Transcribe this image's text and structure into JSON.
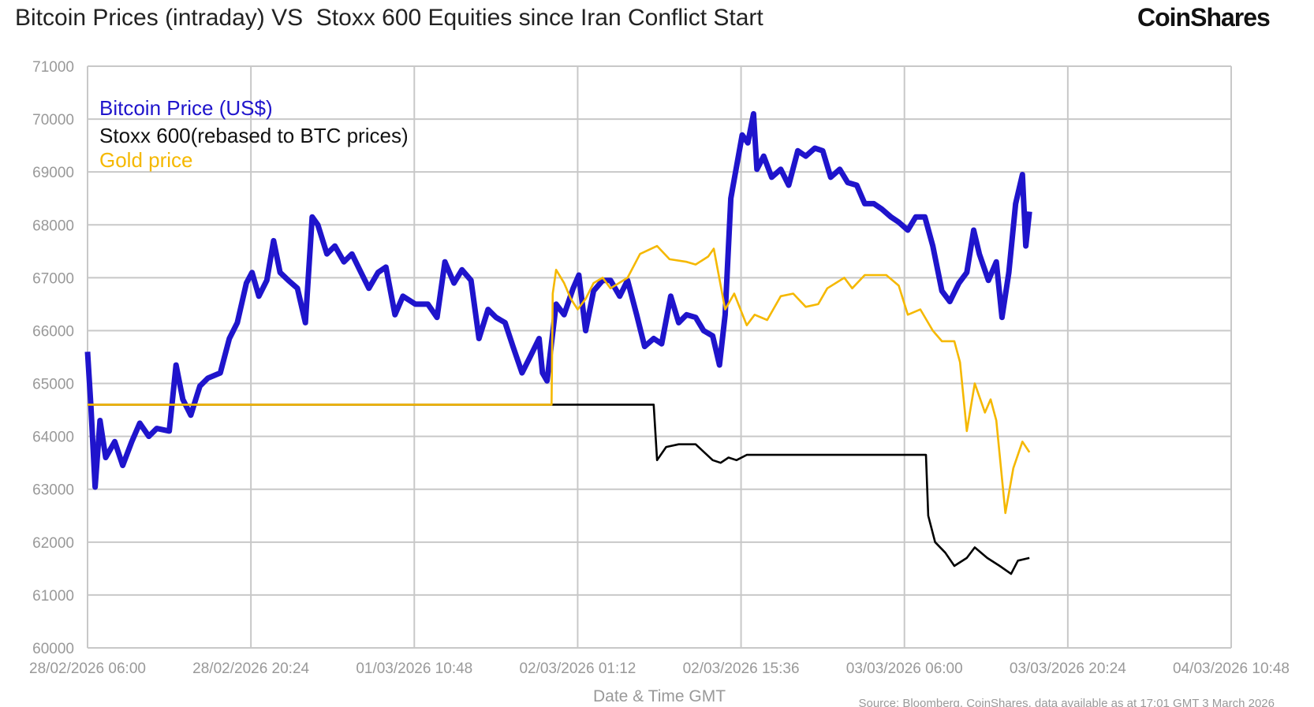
{
  "header": {
    "title": "Bitcoin Prices (intraday) VS  Stoxx 600 Equities since Iran Conflict Start",
    "logo": "CoinShares"
  },
  "chart_data": {
    "type": "line",
    "title": "Bitcoin Prices (intraday) VS  Stoxx 600 Equities since Iran Conflict Start",
    "xlabel": "Date & Time GMT",
    "ylabel": "",
    "ylim": [
      60000,
      71000
    ],
    "yticks": [
      "71000",
      "70000",
      "69000",
      "68000",
      "67000",
      "66000",
      "65000",
      "64000",
      "63000",
      "62000",
      "61000",
      "60000"
    ],
    "xlim": [
      "28/02/2026 06:00",
      "04/03/2026 10:48"
    ],
    "xticks": [
      "28/02/2026 06:00",
      "28/02/2026 20:24",
      "01/03/2026 10:48",
      "02/03/2026 01:12",
      "02/03/2026 15:36",
      "03/03/2026 06:00",
      "03/03/2026 20:24",
      "04/03/2026 10:48"
    ],
    "grid": true,
    "legend_position": "top-left",
    "source": "Source: Bloomberg, CoinShares, data available as at 17:01 GMT 3 March 2026",
    "series": [
      {
        "name": "Bitcoin Price (US$)",
        "color": "#1f14cc",
        "points": [
          [
            "28/02/2026 06:00",
            65600
          ],
          [
            "28/02/2026 06:18",
            64560
          ],
          [
            "28/02/2026 06:40",
            63040
          ],
          [
            "28/02/2026 07:06",
            64300
          ],
          [
            "28/02/2026 07:36",
            63600
          ],
          [
            "28/02/2026 08:24",
            63900
          ],
          [
            "28/02/2026 09:06",
            63450
          ],
          [
            "28/02/2026 09:54",
            63900
          ],
          [
            "28/02/2026 10:36",
            64250
          ],
          [
            "28/02/2026 11:24",
            64000
          ],
          [
            "28/02/2026 12:06",
            64150
          ],
          [
            "28/02/2026 13:12",
            64100
          ],
          [
            "28/02/2026 13:48",
            65350
          ],
          [
            "28/02/2026 14:24",
            64700
          ],
          [
            "28/02/2026 15:06",
            64400
          ],
          [
            "28/02/2026 15:54",
            64950
          ],
          [
            "28/02/2026 16:36",
            65100
          ],
          [
            "28/02/2026 17:42",
            65200
          ],
          [
            "28/02/2026 18:30",
            65850
          ],
          [
            "28/02/2026 19:12",
            66150
          ],
          [
            "28/02/2026 20:00",
            66900
          ],
          [
            "28/02/2026 20:30",
            67100
          ],
          [
            "28/02/2026 21:06",
            66650
          ],
          [
            "28/02/2026 21:48",
            66950
          ],
          [
            "28/02/2026 22:24",
            67700
          ],
          [
            "28/02/2026 22:58",
            67100
          ],
          [
            "28/02/2026 23:42",
            66950
          ],
          [
            "01/03/2026 00:30",
            66800
          ],
          [
            "01/03/2026 01:12",
            66150
          ],
          [
            "01/03/2026 01:48",
            68150
          ],
          [
            "01/03/2026 02:18",
            68000
          ],
          [
            "01/03/2026 03:06",
            67450
          ],
          [
            "01/03/2026 03:48",
            67600
          ],
          [
            "01/03/2026 04:36",
            67300
          ],
          [
            "01/03/2026 05:18",
            67450
          ],
          [
            "01/03/2026 06:06",
            67100
          ],
          [
            "01/03/2026 06:48",
            66800
          ],
          [
            "01/03/2026 07:36",
            67100
          ],
          [
            "01/03/2026 08:18",
            67200
          ],
          [
            "01/03/2026 09:06",
            66300
          ],
          [
            "01/03/2026 09:48",
            66650
          ],
          [
            "01/03/2026 10:54",
            66500
          ],
          [
            "01/03/2026 12:00",
            66500
          ],
          [
            "01/03/2026 12:48",
            66250
          ],
          [
            "01/03/2026 13:30",
            67300
          ],
          [
            "01/03/2026 14:18",
            66900
          ],
          [
            "01/03/2026 15:00",
            67150
          ],
          [
            "01/03/2026 15:48",
            66950
          ],
          [
            "01/03/2026 16:30",
            65850
          ],
          [
            "01/03/2026 17:18",
            66400
          ],
          [
            "01/03/2026 18:00",
            66250
          ],
          [
            "01/03/2026 18:48",
            66150
          ],
          [
            "01/03/2026 19:30",
            65700
          ],
          [
            "01/03/2026 20:18",
            65200
          ],
          [
            "01/03/2026 21:00",
            65500
          ],
          [
            "01/03/2026 21:48",
            65850
          ],
          [
            "01/03/2026 22:06",
            65200
          ],
          [
            "01/03/2026 22:30",
            65050
          ],
          [
            "01/03/2026 23:18",
            66500
          ],
          [
            "02/03/2026 00:00",
            66300
          ],
          [
            "02/03/2026 00:48",
            66800
          ],
          [
            "02/03/2026 01:18",
            67050
          ],
          [
            "02/03/2026 01:54",
            66000
          ],
          [
            "02/03/2026 02:36",
            66750
          ],
          [
            "02/03/2026 03:24",
            66950
          ],
          [
            "02/03/2026 04:06",
            66950
          ],
          [
            "02/03/2026 04:54",
            66650
          ],
          [
            "02/03/2026 05:36",
            66950
          ],
          [
            "02/03/2026 06:24",
            66300
          ],
          [
            "02/03/2026 07:06",
            65700
          ],
          [
            "02/03/2026 07:54",
            65850
          ],
          [
            "02/03/2026 08:36",
            65750
          ],
          [
            "02/03/2026 09:24",
            66650
          ],
          [
            "02/03/2026 10:06",
            66150
          ],
          [
            "02/03/2026 10:48",
            66300
          ],
          [
            "02/03/2026 11:36",
            66250
          ],
          [
            "02/03/2026 12:18",
            66000
          ],
          [
            "02/03/2026 13:06",
            65900
          ],
          [
            "02/03/2026 13:42",
            65350
          ],
          [
            "02/03/2026 14:12",
            66300
          ],
          [
            "02/03/2026 14:42",
            68500
          ],
          [
            "02/03/2026 15:12",
            69100
          ],
          [
            "02/03/2026 15:42",
            69700
          ],
          [
            "02/03/2026 16:12",
            69550
          ],
          [
            "02/03/2026 16:42",
            70100
          ],
          [
            "02/03/2026 17:00",
            69050
          ],
          [
            "02/03/2026 17:36",
            69300
          ],
          [
            "02/03/2026 18:18",
            68900
          ],
          [
            "02/03/2026 19:06",
            69050
          ],
          [
            "02/03/2026 19:48",
            68750
          ],
          [
            "02/03/2026 20:36",
            69400
          ],
          [
            "02/03/2026 21:18",
            69300
          ],
          [
            "02/03/2026 22:06",
            69450
          ],
          [
            "02/03/2026 22:48",
            69400
          ],
          [
            "02/03/2026 23:30",
            68900
          ],
          [
            "03/03/2026 00:18",
            69050
          ],
          [
            "03/03/2026 01:00",
            68800
          ],
          [
            "03/03/2026 01:48",
            68750
          ],
          [
            "03/03/2026 02:30",
            68400
          ],
          [
            "03/03/2026 03:18",
            68400
          ],
          [
            "03/03/2026 04:00",
            68300
          ],
          [
            "03/03/2026 04:48",
            68150
          ],
          [
            "03/03/2026 05:30",
            68050
          ],
          [
            "03/03/2026 06:18",
            67900
          ],
          [
            "03/03/2026 07:00",
            68150
          ],
          [
            "03/03/2026 07:48",
            68150
          ],
          [
            "03/03/2026 08:30",
            67600
          ],
          [
            "03/03/2026 09:18",
            66750
          ],
          [
            "03/03/2026 10:00",
            66550
          ],
          [
            "03/03/2026 10:48",
            66900
          ],
          [
            "03/03/2026 11:30",
            67100
          ],
          [
            "03/03/2026 12:06",
            67900
          ],
          [
            "03/03/2026 12:36",
            67450
          ],
          [
            "03/03/2026 13:24",
            66950
          ],
          [
            "03/03/2026 14:06",
            67300
          ],
          [
            "03/03/2026 14:36",
            66250
          ],
          [
            "03/03/2026 15:12",
            67100
          ],
          [
            "03/03/2026 15:48",
            68400
          ],
          [
            "03/03/2026 16:24",
            68950
          ],
          [
            "03/03/2026 16:42",
            67600
          ],
          [
            "03/03/2026 17:01",
            68250
          ]
        ]
      },
      {
        "name": "Stoxx 600(rebased to BTC prices)",
        "color": "#000000",
        "points": [
          [
            "28/02/2026 06:00",
            64600
          ],
          [
            "02/03/2026 07:54",
            64600
          ],
          [
            "02/03/2026 08:12",
            63550
          ],
          [
            "02/03/2026 09:00",
            63800
          ],
          [
            "02/03/2026 10:06",
            63850
          ],
          [
            "02/03/2026 11:36",
            63850
          ],
          [
            "02/03/2026 13:06",
            63550
          ],
          [
            "02/03/2026 13:48",
            63500
          ],
          [
            "02/03/2026 14:30",
            63600
          ],
          [
            "02/03/2026 15:12",
            63550
          ],
          [
            "02/03/2026 16:06",
            63650
          ],
          [
            "03/03/2026 07:54",
            63650
          ],
          [
            "03/03/2026 08:06",
            62500
          ],
          [
            "03/03/2026 08:42",
            62000
          ],
          [
            "03/03/2026 09:36",
            61800
          ],
          [
            "03/03/2026 10:24",
            61550
          ],
          [
            "03/03/2026 11:30",
            61700
          ],
          [
            "03/03/2026 12:12",
            61900
          ],
          [
            "03/03/2026 13:18",
            61700
          ],
          [
            "03/03/2026 14:24",
            61550
          ],
          [
            "03/03/2026 15:24",
            61400
          ],
          [
            "03/03/2026 16:00",
            61650
          ],
          [
            "03/03/2026 17:01",
            61700
          ]
        ]
      },
      {
        "name": "Gold price",
        "color": "#f5b800",
        "points": [
          [
            "28/02/2026 06:00",
            64600
          ],
          [
            "01/03/2026 22:54",
            64600
          ],
          [
            "01/03/2026 23:00",
            66700
          ],
          [
            "01/03/2026 23:18",
            67150
          ],
          [
            "02/03/2026 00:00",
            66900
          ],
          [
            "02/03/2026 00:36",
            66600
          ],
          [
            "02/03/2026 01:12",
            66400
          ],
          [
            "02/03/2026 01:54",
            66600
          ],
          [
            "02/03/2026 02:36",
            66900
          ],
          [
            "02/03/2026 03:24",
            67000
          ],
          [
            "02/03/2026 04:06",
            66800
          ],
          [
            "02/03/2026 05:36",
            67000
          ],
          [
            "02/03/2026 06:42",
            67450
          ],
          [
            "02/03/2026 08:12",
            67600
          ],
          [
            "02/03/2026 09:18",
            67350
          ],
          [
            "02/03/2026 10:48",
            67300
          ],
          [
            "02/03/2026 11:36",
            67250
          ],
          [
            "02/03/2026 12:42",
            67400
          ],
          [
            "02/03/2026 13:12",
            67550
          ],
          [
            "02/03/2026 14:12",
            66400
          ],
          [
            "02/03/2026 15:00",
            66700
          ],
          [
            "02/03/2026 16:06",
            66100
          ],
          [
            "02/03/2026 16:48",
            66300
          ],
          [
            "02/03/2026 17:54",
            66200
          ],
          [
            "02/03/2026 19:06",
            66650
          ],
          [
            "02/03/2026 20:12",
            66700
          ],
          [
            "02/03/2026 21:18",
            66450
          ],
          [
            "02/03/2026 22:24",
            66500
          ],
          [
            "02/03/2026 23:12",
            66800
          ],
          [
            "03/03/2026 00:42",
            67000
          ],
          [
            "03/03/2026 01:24",
            66800
          ],
          [
            "03/03/2026 02:30",
            67050
          ],
          [
            "03/03/2026 04:24",
            67050
          ],
          [
            "03/03/2026 05:30",
            66850
          ],
          [
            "03/03/2026 06:18",
            66300
          ],
          [
            "03/03/2026 07:24",
            66400
          ],
          [
            "03/03/2026 08:30",
            66000
          ],
          [
            "03/03/2026 09:18",
            65800
          ],
          [
            "03/03/2026 10:24",
            65800
          ],
          [
            "03/03/2026 10:54",
            65400
          ],
          [
            "03/03/2026 11:30",
            64100
          ],
          [
            "03/03/2026 12:12",
            65000
          ],
          [
            "03/03/2026 13:06",
            64450
          ],
          [
            "03/03/2026 13:36",
            64700
          ],
          [
            "03/03/2026 14:06",
            64300
          ],
          [
            "03/03/2026 14:54",
            62550
          ],
          [
            "03/03/2026 15:36",
            63400
          ],
          [
            "03/03/2026 16:24",
            63900
          ],
          [
            "03/03/2026 17:01",
            63700
          ]
        ]
      }
    ]
  }
}
